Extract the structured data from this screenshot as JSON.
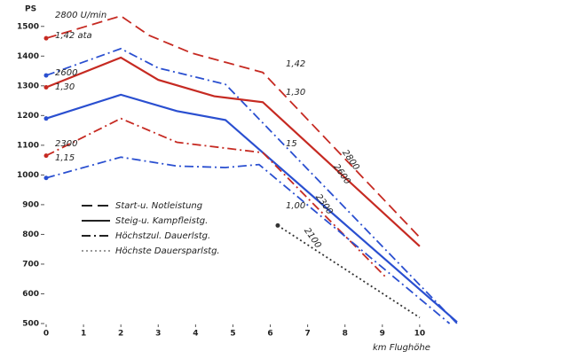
{
  "chart_data": {
    "type": "line",
    "ylabel": "PS",
    "xlabel": "km Flughöhe",
    "xlim": [
      0,
      11
    ],
    "ylim": [
      500,
      1550
    ],
    "xticks": [
      0,
      1,
      2,
      3,
      4,
      5,
      6,
      7,
      8,
      9,
      10
    ],
    "yticks": [
      500,
      600,
      700,
      800,
      900,
      1000,
      1100,
      1200,
      1300,
      1400,
      1500
    ],
    "series": [
      {
        "color": "#c62a22",
        "dash": "dashed",
        "x": [
          0,
          2,
          2.75,
          3.9,
          5.8,
          10
        ],
        "values": [
          1460,
          1535,
          1470,
          1410,
          1345,
          790
        ]
      },
      {
        "color": "#2a4fd0",
        "dash": "dashdot",
        "x": [
          0,
          2,
          3,
          4.8,
          11
        ],
        "values": [
          1335,
          1425,
          1360,
          1305,
          500
        ]
      },
      {
        "color": "#c62a22",
        "dash": "solid",
        "x": [
          0,
          2,
          3,
          4.5,
          5.8,
          10
        ],
        "values": [
          1295,
          1395,
          1320,
          1265,
          1245,
          760
        ]
      },
      {
        "color": "#2a4fd0",
        "dash": "solid",
        "x": [
          0,
          2,
          3.5,
          4.8,
          11
        ],
        "values": [
          1190,
          1270,
          1215,
          1185,
          505
        ]
      },
      {
        "color": "#c62a22",
        "dash": "dashdot",
        "x": [
          0,
          2,
          3.5,
          5.8,
          9.1
        ],
        "values": [
          1065,
          1190,
          1110,
          1075,
          655
        ]
      },
      {
        "color": "#2a4fd0",
        "dash": "dashdot",
        "x": [
          0,
          2,
          3.5,
          4.8,
          5.7,
          10.8
        ],
        "values": [
          990,
          1060,
          1030,
          1025,
          1035,
          500
        ]
      },
      {
        "color": "#333333",
        "dash": "dotted",
        "x": [
          6.2,
          10
        ],
        "values": [
          830,
          520
        ]
      }
    ],
    "legend": [
      {
        "label": "Start-u. Notleistung",
        "dash": "dashed",
        "color": "#222222"
      },
      {
        "label": "Steig-u. Kampfleistg.",
        "dash": "solid",
        "color": "#222222"
      },
      {
        "label": "Höchstzul. Dauerlstg.",
        "dash": "dashdot",
        "color": "#222222"
      },
      {
        "label": "Höchste Dauersparlstg.",
        "dash": "dotted",
        "color": "#999999"
      }
    ],
    "annotations": [
      "2800 U/min",
      "1,42 ata",
      "2600",
      "1,30",
      "2300",
      "1,15",
      "1,42",
      "1,30",
      "15",
      "1,00",
      "2800",
      "2600",
      "2300",
      "2100"
    ]
  }
}
